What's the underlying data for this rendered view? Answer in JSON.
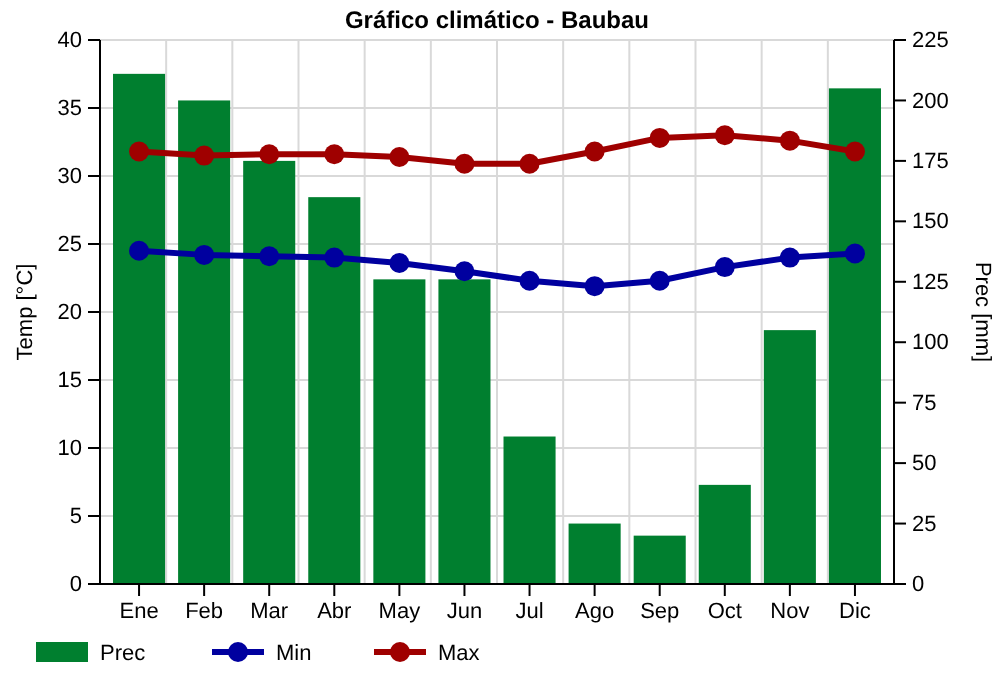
{
  "chart_data": {
    "type": "bar",
    "title": "Gráfico climático - Baubau",
    "ylabel": "Temp [°C]",
    "y2label": "Prec [mm]",
    "categories": [
      "Ene",
      "Feb",
      "Mar",
      "Abr",
      "May",
      "Jun",
      "Jul",
      "Ago",
      "Sep",
      "Oct",
      "Nov",
      "Dic"
    ],
    "series": [
      {
        "name": "Prec",
        "axis": "y2",
        "color": "#007f2f",
        "values": [
          211,
          200,
          175,
          160,
          126,
          126,
          61,
          25,
          20,
          41,
          105,
          205
        ]
      },
      {
        "name": "Min",
        "type": "line",
        "color": "#00009f",
        "marker": "circle",
        "values": [
          24.5,
          24.2,
          24.1,
          24.0,
          23.6,
          23.0,
          22.3,
          21.9,
          22.3,
          23.3,
          24.0,
          24.3
        ]
      },
      {
        "name": "Max",
        "type": "line",
        "color": "#9f0000",
        "marker": "circle",
        "values": [
          31.8,
          31.5,
          31.6,
          31.6,
          31.4,
          30.9,
          30.9,
          31.8,
          32.8,
          33.0,
          32.6,
          31.8
        ]
      }
    ],
    "ylim": [
      0,
      40
    ],
    "yticks": [
      0,
      5,
      10,
      15,
      20,
      25,
      30,
      35,
      40
    ],
    "y2lim": [
      0,
      225
    ],
    "y2ticks": [
      0,
      25,
      50,
      75,
      100,
      125,
      150,
      175,
      200,
      225
    ],
    "grid": true,
    "legend": "bottom"
  }
}
